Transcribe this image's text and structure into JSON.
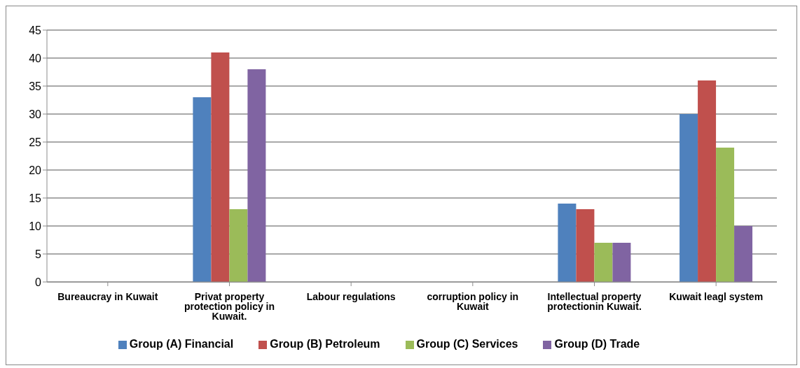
{
  "chart_data": {
    "type": "bar",
    "categories": [
      "Bureaucray in Kuwait",
      "Privat property protection policy in Kuwait.",
      "Labour regulations",
      "corruption policy in Kuwait",
      "Intellectual property protectionin Kuwait.",
      "Kuwait leagl system"
    ],
    "series": [
      {
        "name": "Group (A) Financial",
        "color": "#4f81bd",
        "values": [
          null,
          33,
          null,
          null,
          14,
          30
        ]
      },
      {
        "name": "Group (B) Petroleum",
        "color": "#c0504d",
        "values": [
          null,
          41,
          null,
          null,
          13,
          36
        ]
      },
      {
        "name": "Group (C) Services",
        "color": "#9bbb59",
        "values": [
          null,
          13,
          null,
          null,
          7,
          24
        ]
      },
      {
        "name": "Group (D) Trade",
        "color": "#8064a2",
        "values": [
          null,
          38,
          null,
          null,
          7,
          10
        ]
      }
    ],
    "ylim": [
      0,
      45
    ],
    "yticks": [
      0,
      5,
      10,
      15,
      20,
      25,
      30,
      35,
      40,
      45
    ],
    "grid": "y",
    "legend": "bottom"
  }
}
